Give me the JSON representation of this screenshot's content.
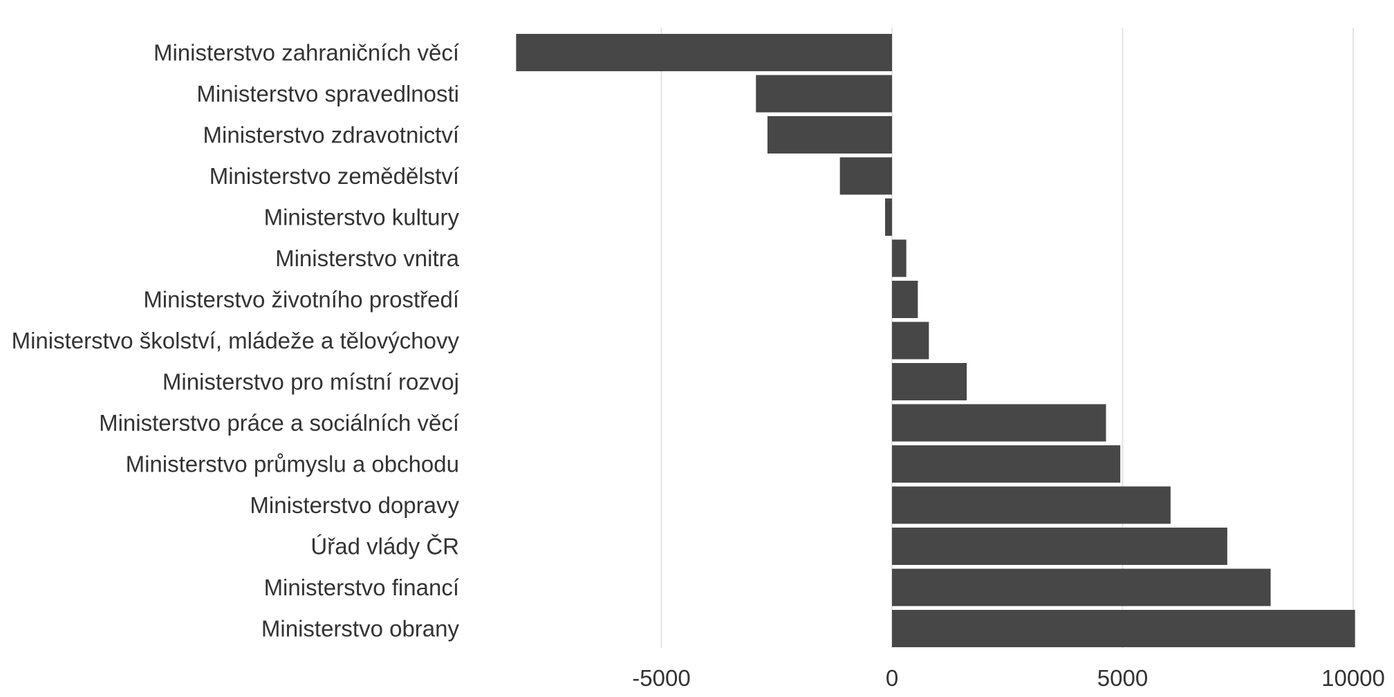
{
  "chart_data": {
    "type": "bar",
    "orientation": "horizontal",
    "title": "",
    "xlabel": "",
    "ylabel": "",
    "xlim": [
      -8200,
      10050
    ],
    "grid": "vertical",
    "bar_color": "#474747",
    "categories": [
      "Ministerstvo zahraničních věcí",
      "Ministerstvo spravedlnosti",
      "Ministerstvo zdravotnictví",
      "Ministerstvo zemědělství",
      "Ministerstvo kultury",
      "Ministerstvo vnitra",
      "Ministerstvo životního prostředí",
      "Ministerstvo školství, mládeže a tělovýchovy",
      "Ministerstvo pro místní rozvoj",
      "Ministerstvo práce a sociálních věcí",
      "Ministerstvo průmyslu a obchodu",
      "Ministerstvo dopravy",
      "Úřad vlády ČR",
      "Ministerstvo financí",
      "Ministerstvo obrany"
    ],
    "values": [
      -8150,
      -2950,
      -2700,
      -1130,
      -150,
      310,
      560,
      800,
      1620,
      4640,
      4950,
      6040,
      7270,
      8210,
      10040
    ],
    "ticks": [
      {
        "value": -5000,
        "label": "-5000"
      },
      {
        "value": 0,
        "label": "0"
      },
      {
        "value": 5000,
        "label": "5000"
      },
      {
        "value": 10000,
        "label": "10000"
      }
    ]
  }
}
